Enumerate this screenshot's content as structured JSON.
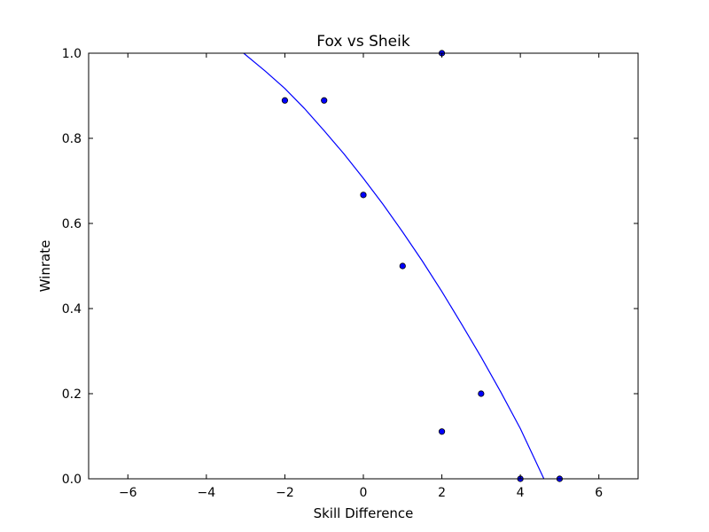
{
  "chart_data": {
    "type": "scatter",
    "title": "Fox vs Sheik",
    "xlabel": "Skill Difference",
    "ylabel": "Winrate",
    "xlim": [
      -7,
      7
    ],
    "ylim": [
      0,
      1
    ],
    "xticks": [
      -6,
      -4,
      -2,
      0,
      2,
      4,
      6
    ],
    "yticks": [
      0.0,
      0.2,
      0.4,
      0.6,
      0.8,
      1.0
    ],
    "xtick_labels": [
      "−6",
      "−4",
      "−2",
      "0",
      "2",
      "4",
      "6"
    ],
    "ytick_labels": [
      "0.0",
      "0.2",
      "0.4",
      "0.6",
      "0.8",
      "1.0"
    ],
    "grid": false,
    "series": [
      {
        "kind": "scatter",
        "points": [
          [
            -2,
            0.889
          ],
          [
            -1,
            0.889
          ],
          [
            0,
            0.667
          ],
          [
            1,
            0.5
          ],
          [
            2,
            1.0
          ],
          [
            2,
            0.111
          ],
          [
            3,
            0.2
          ],
          [
            4,
            0.0
          ],
          [
            5,
            0.0
          ]
        ],
        "color": "#0000ff"
      },
      {
        "kind": "line",
        "points": [
          [
            -3.05,
            1.0
          ],
          [
            -2.5,
            0.958
          ],
          [
            -2.0,
            0.917
          ],
          [
            -1.5,
            0.87
          ],
          [
            -1.0,
            0.818
          ],
          [
            -0.5,
            0.764
          ],
          [
            0.0,
            0.706
          ],
          [
            0.5,
            0.645
          ],
          [
            1.0,
            0.58
          ],
          [
            1.5,
            0.512
          ],
          [
            2.0,
            0.44
          ],
          [
            2.5,
            0.364
          ],
          [
            3.0,
            0.286
          ],
          [
            3.5,
            0.204
          ],
          [
            4.0,
            0.118
          ],
          [
            4.6,
            0.0
          ]
        ],
        "color": "#0000ff"
      }
    ]
  }
}
